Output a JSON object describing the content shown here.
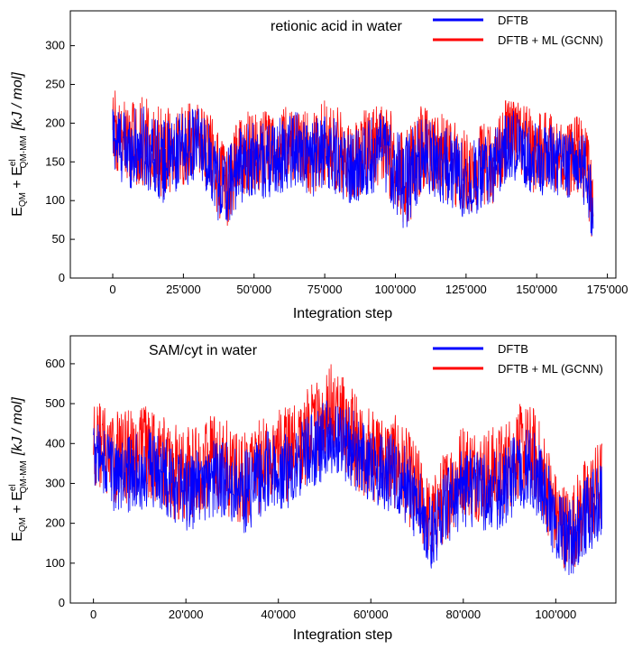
{
  "chart_data": [
    {
      "type": "line",
      "annotation": "retionic acid in water",
      "xlabel": "Integration step",
      "ylabel": {
        "main": "E",
        "sub1": "QM",
        "plus": " + E",
        "sup": "el",
        "sub2": "QM-MM",
        "unit": "[kJ / mol]"
      },
      "xlim": [
        -15000,
        178000
      ],
      "ylim": [
        0,
        345
      ],
      "xticks": [
        0,
        25000,
        50000,
        75000,
        100000,
        125000,
        150000,
        175000
      ],
      "xtick_labels": [
        "0",
        "25'000",
        "50'000",
        "75'000",
        "100'000",
        "125'000",
        "150'000",
        "175'000"
      ],
      "yticks": [
        0,
        50,
        100,
        150,
        200,
        250,
        300
      ],
      "ytick_labels": [
        "0",
        "50",
        "100",
        "150",
        "200",
        "250",
        "300"
      ],
      "legend": {
        "placement": "top-right",
        "entries": [
          "DFTB",
          "DFTB + ML (GCNN)"
        ]
      },
      "series": [
        {
          "name": "DFTB",
          "color": "#0000ff",
          "x": [
            0,
            2000,
            5000,
            10000,
            15000,
            18000,
            20000,
            25000,
            30000,
            35000,
            38000,
            40000,
            42000,
            45000,
            50000,
            55000,
            60000,
            65000,
            70000,
            75000,
            80000,
            85000,
            90000,
            95000,
            100000,
            103000,
            105000,
            108000,
            110000,
            115000,
            120000,
            125000,
            130000,
            135000,
            140000,
            145000,
            150000,
            155000,
            160000,
            165000,
            168000,
            170000
          ],
          "center": [
            185,
            175,
            165,
            170,
            160,
            150,
            155,
            165,
            175,
            150,
            120,
            110,
            130,
            145,
            155,
            150,
            160,
            170,
            150,
            165,
            155,
            140,
            155,
            165,
            140,
            120,
            130,
            150,
            160,
            150,
            140,
            125,
            135,
            140,
            175,
            165,
            150,
            155,
            145,
            150,
            130,
            80
          ],
          "amp": [
            45,
            50,
            50,
            55,
            50,
            55,
            50,
            50,
            45,
            50,
            55,
            55,
            50,
            50,
            50,
            50,
            50,
            50,
            50,
            50,
            50,
            50,
            50,
            50,
            55,
            60,
            60,
            55,
            50,
            50,
            50,
            50,
            50,
            50,
            45,
            45,
            50,
            45,
            45,
            45,
            50,
            40
          ]
        },
        {
          "name": "DFTB + ML (GCNN)",
          "color": "#ff0000",
          "x": [
            0,
            2000,
            5000,
            10000,
            15000,
            18000,
            20000,
            25000,
            30000,
            35000,
            38000,
            40000,
            42000,
            45000,
            50000,
            55000,
            60000,
            65000,
            70000,
            75000,
            80000,
            85000,
            90000,
            95000,
            100000,
            103000,
            105000,
            108000,
            110000,
            115000,
            120000,
            125000,
            130000,
            135000,
            140000,
            145000,
            150000,
            155000,
            160000,
            165000,
            168000,
            170000
          ],
          "center": [
            195,
            185,
            175,
            180,
            170,
            160,
            165,
            175,
            185,
            160,
            125,
            115,
            135,
            155,
            165,
            160,
            170,
            180,
            160,
            175,
            165,
            150,
            165,
            175,
            150,
            125,
            135,
            160,
            170,
            160,
            150,
            135,
            145,
            150,
            190,
            175,
            160,
            165,
            155,
            160,
            140,
            80
          ],
          "amp": [
            50,
            55,
            55,
            60,
            55,
            60,
            55,
            55,
            50,
            55,
            60,
            60,
            55,
            55,
            55,
            55,
            55,
            55,
            55,
            55,
            55,
            55,
            55,
            55,
            60,
            65,
            65,
            60,
            55,
            55,
            55,
            55,
            55,
            55,
            50,
            50,
            55,
            50,
            50,
            50,
            55,
            45
          ]
        }
      ]
    },
    {
      "type": "line",
      "annotation": "SAM/cyt in water",
      "xlabel": "Integration step",
      "ylabel": {
        "main": "E",
        "sub1": "QM",
        "plus": " + E",
        "sup": "el",
        "sub2": "QM-MM",
        "unit": "[kJ / mol]"
      },
      "xlim": [
        -5000,
        113000
      ],
      "ylim": [
        0,
        670
      ],
      "xticks": [
        0,
        20000,
        40000,
        60000,
        80000,
        100000
      ],
      "xtick_labels": [
        "0",
        "20'000",
        "40'000",
        "60'000",
        "80'000",
        "100'000"
      ],
      "yticks": [
        0,
        100,
        200,
        300,
        400,
        500,
        600
      ],
      "ytick_labels": [
        "0",
        "100",
        "200",
        "300",
        "400",
        "500",
        "600"
      ],
      "legend": {
        "placement": "top-right",
        "entries": [
          "DFTB",
          "DFTB + ML (GCNN)"
        ]
      },
      "series": [
        {
          "name": "DFTB",
          "color": "#0000ff",
          "x": [
            0,
            3000,
            6000,
            10000,
            13000,
            17000,
            20000,
            23000,
            26000,
            30000,
            32000,
            35000,
            38000,
            42000,
            45000,
            48000,
            52000,
            55000,
            58000,
            62000,
            66000,
            70000,
            73000,
            76000,
            80000,
            84000,
            88000,
            92000,
            95000,
            98000,
            100000,
            103000,
            106000,
            110000
          ],
          "center": [
            380,
            340,
            320,
            330,
            340,
            300,
            280,
            290,
            310,
            300,
            270,
            300,
            340,
            330,
            360,
            390,
            420,
            400,
            360,
            330,
            320,
            250,
            170,
            230,
            290,
            280,
            280,
            330,
            340,
            260,
            200,
            160,
            210,
            260
          ],
          "amp": [
            90,
            100,
            100,
            100,
            100,
            100,
            100,
            100,
            100,
            100,
            110,
            100,
            100,
            100,
            100,
            100,
            100,
            100,
            100,
            100,
            100,
            100,
            90,
            100,
            100,
            100,
            100,
            100,
            100,
            100,
            100,
            100,
            100,
            100
          ]
        },
        {
          "name": "DFTB + ML (GCNN)",
          "color": "#ff0000",
          "x": [
            0,
            3000,
            6000,
            10000,
            13000,
            17000,
            20000,
            23000,
            26000,
            30000,
            32000,
            35000,
            38000,
            42000,
            45000,
            48000,
            52000,
            55000,
            58000,
            62000,
            66000,
            70000,
            73000,
            76000,
            80000,
            84000,
            88000,
            92000,
            95000,
            98000,
            100000,
            103000,
            106000,
            110000
          ],
          "center": [
            410,
            370,
            360,
            380,
            370,
            330,
            320,
            330,
            360,
            330,
            300,
            330,
            380,
            370,
            400,
            440,
            480,
            430,
            390,
            360,
            350,
            280,
            200,
            270,
            340,
            320,
            330,
            380,
            380,
            300,
            220,
            180,
            240,
            300
          ],
          "amp": [
            110,
            120,
            120,
            125,
            120,
            120,
            120,
            120,
            120,
            120,
            120,
            120,
            120,
            120,
            120,
            120,
            130,
            120,
            120,
            120,
            120,
            120,
            100,
            120,
            120,
            120,
            120,
            120,
            120,
            120,
            110,
            110,
            120,
            120
          ]
        }
      ]
    }
  ]
}
